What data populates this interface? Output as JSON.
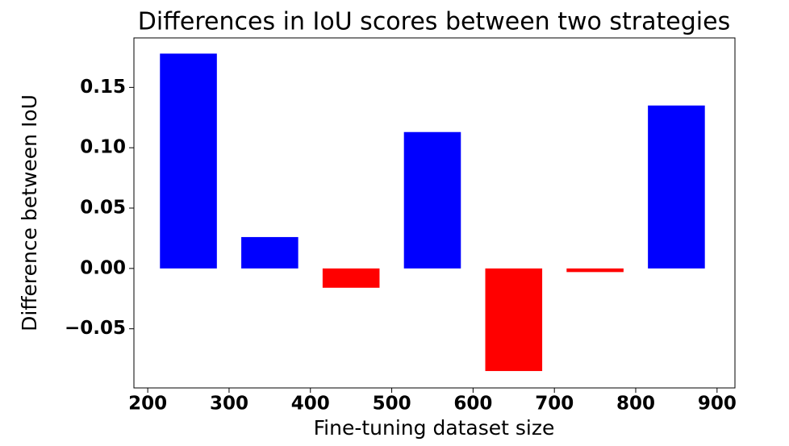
{
  "chart_data": {
    "type": "bar",
    "title": "Differences in IoU scores between two strategies",
    "x_label": "Fine-tuning dataset size",
    "y_label": "Difference between IoU",
    "x": [
      250,
      350,
      450,
      550,
      650,
      750,
      850
    ],
    "values": [
      0.178,
      0.026,
      -0.016,
      0.113,
      -0.085,
      -0.003,
      0.135
    ],
    "colors": [
      "#0000ff",
      "#0000ff",
      "#ff0000",
      "#0000ff",
      "#ff0000",
      "#ff0000",
      "#0000ff"
    ],
    "xlim": [
      183,
      922
    ],
    "xticks": [
      200,
      300,
      400,
      500,
      600,
      700,
      800,
      900
    ],
    "ylim": [
      -0.099,
      0.191
    ],
    "yticks": [
      {
        "value": -0.05,
        "label": "−0.05"
      },
      {
        "value": 0,
        "label": "0.00"
      },
      {
        "value": 0.05,
        "label": "0.05"
      },
      {
        "value": 0.1,
        "label": "0.10"
      },
      {
        "value": 0.15,
        "label": "0.15"
      }
    ],
    "grid": false
  }
}
